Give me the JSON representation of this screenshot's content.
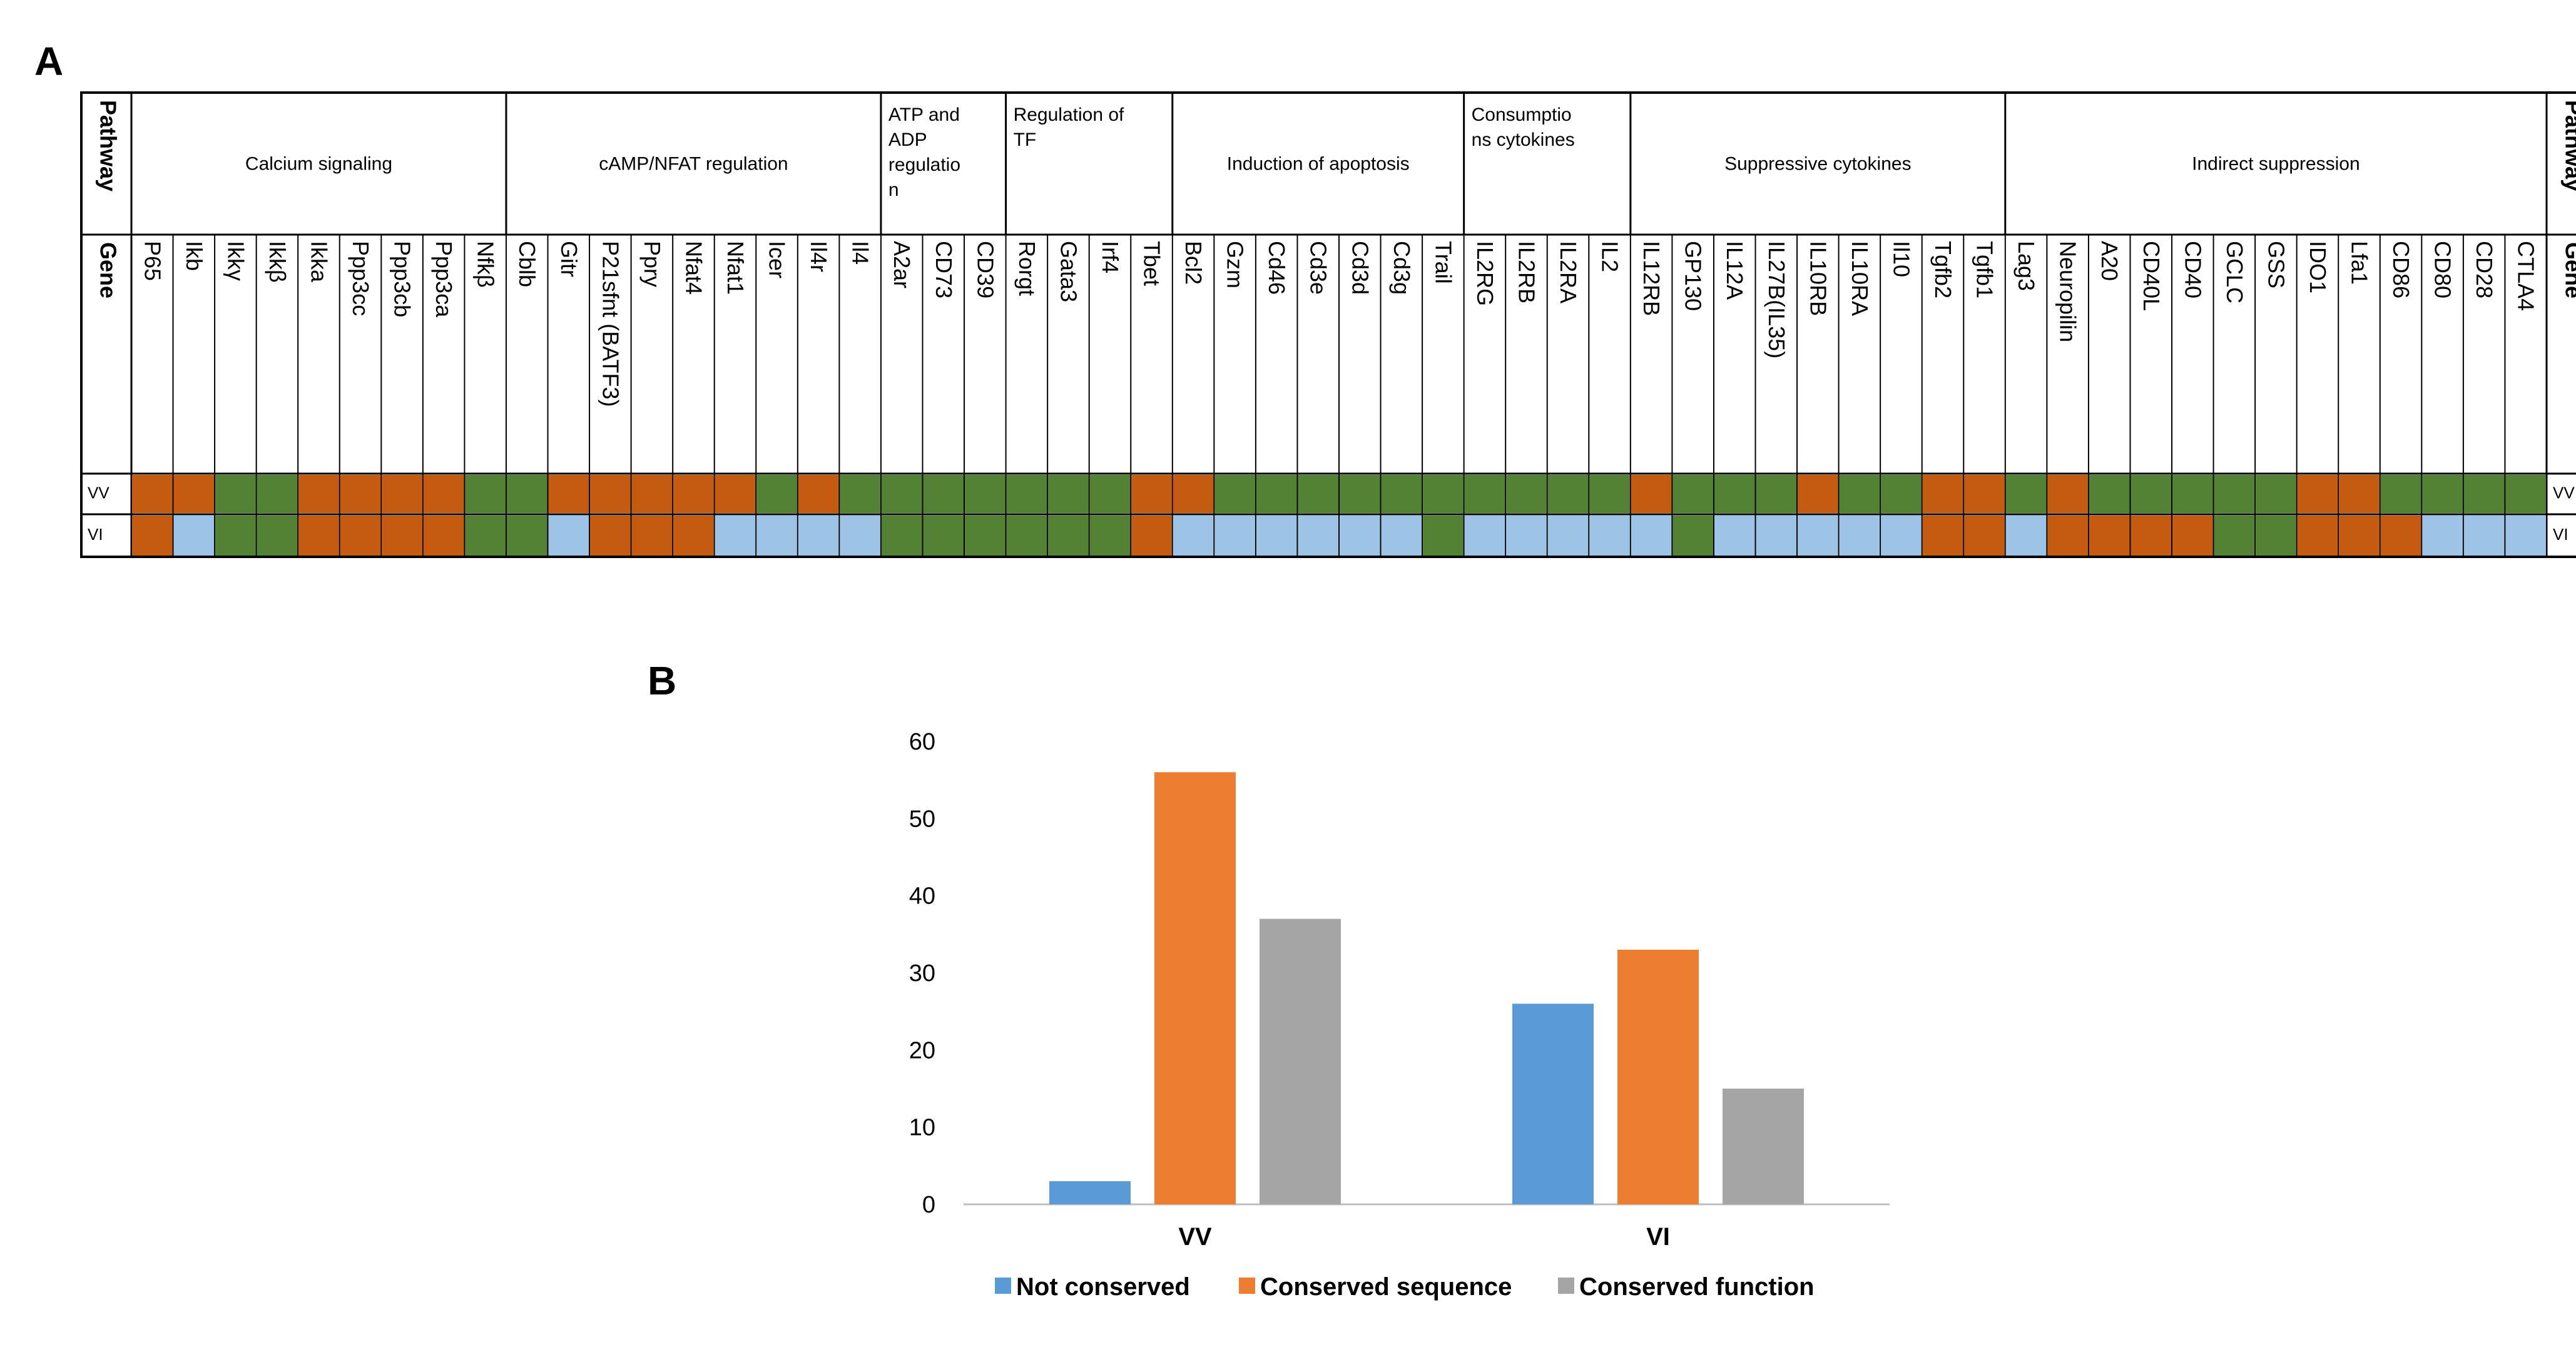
{
  "panel_a": {
    "label": "A",
    "pathway_label": "Pathway",
    "gene_label": "Gene",
    "row_labels": [
      "VV",
      "VI"
    ],
    "status_colors": {
      "orange": "#c55a11",
      "green": "#548235",
      "blue": "#9dc3e6"
    },
    "pathways": [
      {
        "name": "Calcium signaling",
        "genes": [
          "P65",
          "Ikb",
          "Ikkγ",
          "Ikkβ",
          "Ikka",
          "Ppp3cc",
          "Ppp3cb",
          "Ppp3ca",
          "Nfkβ"
        ],
        "vv": [
          "orange",
          "orange",
          "green",
          "green",
          "orange",
          "orange",
          "orange",
          "orange",
          "green"
        ],
        "vi": [
          "orange",
          "blue",
          "green",
          "green",
          "orange",
          "orange",
          "orange",
          "orange",
          "green"
        ]
      },
      {
        "name": "cAMP/NFAT regulation",
        "genes": [
          "Cblb",
          "Gitr",
          "P21sfnt (BATF3)",
          "Ppry",
          "Nfat4",
          "Nfat1",
          "Icer",
          "Il4r",
          "Il4"
        ],
        "vv": [
          "green",
          "orange",
          "orange",
          "orange",
          "orange",
          "orange",
          "green",
          "orange",
          "green"
        ],
        "vi": [
          "green",
          "blue",
          "orange",
          "orange",
          "orange",
          "blue",
          "blue",
          "blue",
          "blue"
        ]
      },
      {
        "name": "ATP and ADP regulation",
        "name_lines": [
          "ATP and",
          "ADP",
          "regulatio",
          "n"
        ],
        "genes": [
          "A2ar",
          "CD73",
          "CD39"
        ],
        "vv": [
          "green",
          "green",
          "green"
        ],
        "vi": [
          "green",
          "green",
          "green"
        ]
      },
      {
        "name": "Regulation of TF",
        "name_lines": [
          "Regulation of",
          "TF"
        ],
        "genes": [
          "Rorgt",
          "Gata3",
          "Irf4",
          "Tbet"
        ],
        "vv": [
          "green",
          "green",
          "green",
          "orange"
        ],
        "vi": [
          "green",
          "green",
          "green",
          "orange"
        ]
      },
      {
        "name": "Induction of apoptosis",
        "genes": [
          "Bcl2",
          "Gzm",
          "Cd46",
          "Cd3e",
          "Cd3d",
          "Cd3g",
          "Trail"
        ],
        "vv": [
          "orange",
          "green",
          "green",
          "green",
          "green",
          "green",
          "green"
        ],
        "vi": [
          "blue",
          "blue",
          "blue",
          "blue",
          "blue",
          "blue",
          "green"
        ]
      },
      {
        "name": "Consumptions cytokines",
        "name_lines": [
          "Consumptio",
          "ns cytokines"
        ],
        "genes": [
          "IL2RG",
          "IL2RB",
          "IL2RA",
          "IL2"
        ],
        "vv": [
          "green",
          "green",
          "green",
          "green"
        ],
        "vi": [
          "blue",
          "blue",
          "blue",
          "blue"
        ]
      },
      {
        "name": "Suppressive cytokines",
        "genes": [
          "IL12RB",
          "GP130",
          "IL12A",
          "IL27B(IL35)",
          "IL10RB",
          "IL10RA",
          "Il10",
          "Tgfb2",
          "Tgfb1"
        ],
        "vv": [
          "orange",
          "green",
          "green",
          "green",
          "orange",
          "green",
          "green",
          "orange",
          "orange"
        ],
        "vi": [
          "blue",
          "green",
          "blue",
          "blue",
          "blue",
          "blue",
          "blue",
          "orange",
          "orange"
        ]
      },
      {
        "name": "Indirect suppression",
        "genes": [
          "Lag3",
          "Neuropilin",
          "A20",
          "CD40L",
          "CD40",
          "GCLC",
          "GSS",
          "IDO1",
          "Lfa1",
          "CD86",
          "CD80",
          "CD28",
          "CTLA4"
        ],
        "vv": [
          "green",
          "orange",
          "green",
          "green",
          "green",
          "green",
          "green",
          "orange",
          "orange",
          "green",
          "green",
          "green",
          "green"
        ],
        "vi": [
          "blue",
          "orange",
          "orange",
          "orange",
          "orange",
          "green",
          "green",
          "orange",
          "orange",
          "orange",
          "blue",
          "blue",
          "blue"
        ]
      }
    ]
  },
  "panel_b": {
    "label": "B",
    "legend_position": "bottom"
  },
  "chart_data": {
    "type": "bar",
    "categories": [
      "VV",
      "VI"
    ],
    "series": [
      {
        "name": "Not conserved",
        "values": [
          3,
          26
        ],
        "color": "#5b9bd5"
      },
      {
        "name": "Conserved sequence",
        "values": [
          56,
          33
        ],
        "color": "#ed7d31"
      },
      {
        "name": "Conserved function",
        "values": [
          37,
          15
        ],
        "color": "#a5a5a5"
      }
    ],
    "title": "",
    "xlabel": "",
    "ylabel": "",
    "ylim": [
      0,
      60
    ],
    "yticks": [
      0,
      10,
      20,
      30,
      40,
      50,
      60
    ],
    "grid": false
  }
}
